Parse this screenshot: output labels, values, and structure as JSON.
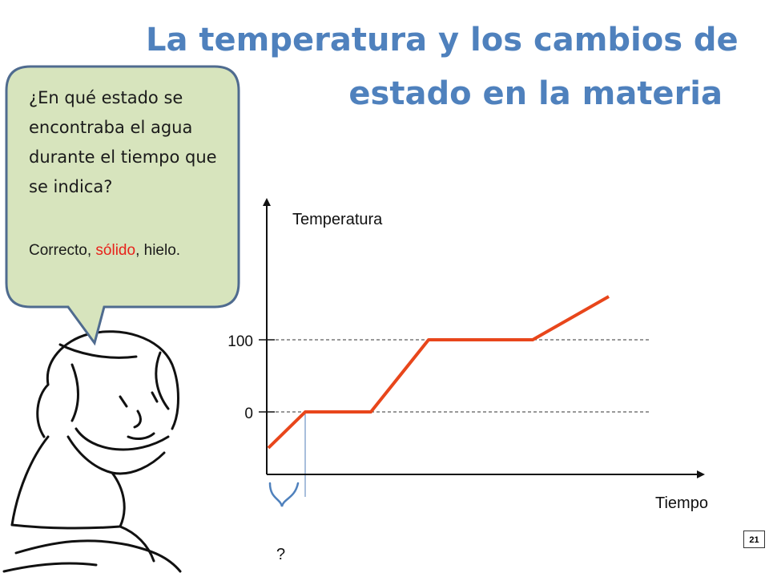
{
  "slide": {
    "title_line1": "La temperatura y los cambios de",
    "title_line2": "estado en la materia",
    "slide_number": "21",
    "title_color": "#4f81bd"
  },
  "bubble": {
    "question": "¿En qué estado se encontraba el agua durante el tiempo que se indica?",
    "answer_prefix": "Correcto, ",
    "answer_highlight": "sólido",
    "answer_suffix": ", hielo.",
    "fill_color": "#d7e4bd",
    "border_color": "#4f6b8f",
    "highlight_color": "#e8221b"
  },
  "illustration": {
    "icon": "thinking-boy-icon"
  },
  "graph": {
    "y_axis_label": "Temperatura",
    "x_axis_label": "Tiempo",
    "tick_100": "100",
    "tick_0": "0",
    "question_mark": "?",
    "line_color": "#e8461b"
  },
  "chart_data": {
    "type": "line",
    "x_label": "Tiempo",
    "y_label": "Temperatura",
    "y_ticks": [
      0,
      100
    ],
    "series": [
      {
        "x": [
          0,
          1,
          2,
          3,
          4,
          5
        ],
        "y": [
          -50,
          0,
          0,
          100,
          100,
          160
        ]
      }
    ]
  }
}
